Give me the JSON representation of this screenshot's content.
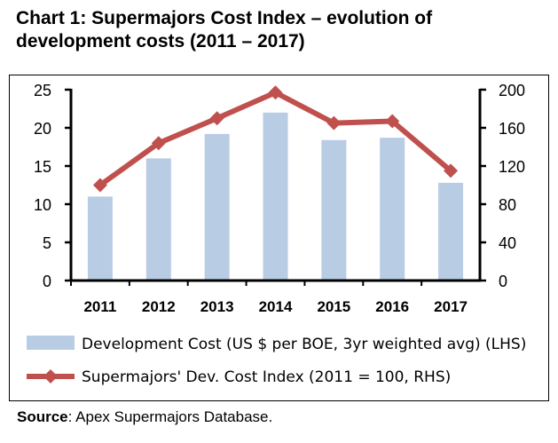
{
  "title": {
    "line1": "Chart 1: Supermajors Cost Index – evolution of",
    "line2": "development costs (2011 – 2017)"
  },
  "source": {
    "label": "Source",
    "text": ": Apex Supermajors Database."
  },
  "chart_data": {
    "type": "bar",
    "categories": [
      "2011",
      "2012",
      "2013",
      "2014",
      "2015",
      "2016",
      "2017"
    ],
    "series": [
      {
        "name": "Development Cost (US $ per BOE, 3yr weighted avg) (LHS)",
        "type": "bar",
        "axis": "left",
        "color": "#b8cce4",
        "values": [
          11.0,
          16.0,
          19.2,
          22.0,
          18.4,
          18.7,
          12.8
        ]
      },
      {
        "name": "Supermajors' Dev. Cost Index (2011 = 100, RHS)",
        "type": "line",
        "axis": "right",
        "color": "#c0504d",
        "values": [
          100,
          144,
          170,
          197,
          165,
          167,
          115
        ]
      }
    ],
    "y_left": {
      "min": 0,
      "max": 25,
      "ticks": [
        "0",
        "5",
        "10",
        "15",
        "20",
        "25"
      ]
    },
    "y_right": {
      "min": 0,
      "max": 200,
      "ticks": [
        "0",
        "40",
        "80",
        "120",
        "160",
        "200"
      ]
    },
    "grid": false,
    "legend_position": "bottom"
  }
}
